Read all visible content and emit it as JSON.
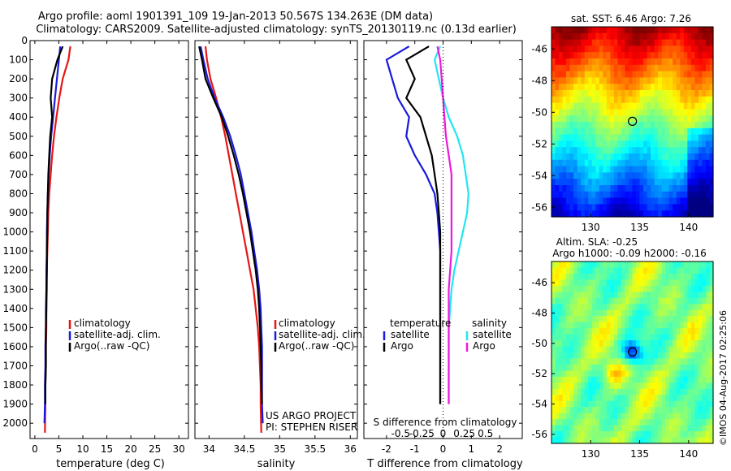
{
  "header": {
    "line1": "Argo profile: aoml 1901391_109 19-Jan-2013 50.567S 134.263E (DM data)",
    "line2": "Climatology: CARS2009. Satellite-adjusted climatology: synTS_20130119.nc (0.13d earlier)"
  },
  "colors": {
    "climatology": "#e81515",
    "satellite": "#1a1adc",
    "argo": "#000000",
    "cyan": "#20e6f0",
    "magenta": "#ee18dd"
  },
  "chart_data": [
    {
      "type": "line",
      "name": "temperature-profile",
      "xlabel": "temperature (deg C)",
      "ylabel": "",
      "xlim": [
        -1,
        32
      ],
      "ylim": [
        2080,
        0
      ],
      "xticks": [
        "0",
        "5",
        "10",
        "15",
        "20",
        "25",
        "30"
      ],
      "yticks": [
        "0",
        "100",
        "200",
        "300",
        "400",
        "500",
        "600",
        "700",
        "800",
        "900",
        "1000",
        "1100",
        "1200",
        "1300",
        "1400",
        "1500",
        "1600",
        "1700",
        "1800",
        "1900",
        "2000"
      ],
      "legend": [
        "climatology",
        "satellite-adj. clim.",
        "Argo(..raw -QC)"
      ],
      "series": [
        {
          "name": "climatology",
          "color_key": "climatology",
          "x": [
            7.4,
            7.0,
            5.8,
            5.1,
            4.5,
            4.0,
            3.6,
            3.3,
            3.0,
            2.8,
            2.7,
            2.6,
            2.5,
            2.5,
            2.4,
            2.4,
            2.3,
            2.3,
            2.2,
            2.2,
            2.1
          ],
          "y": [
            30,
            100,
            200,
            300,
            400,
            500,
            600,
            700,
            800,
            900,
            1000,
            1100,
            1200,
            1300,
            1400,
            1500,
            1600,
            1700,
            1800,
            1900,
            2050
          ]
        },
        {
          "name": "satellite-adj. clim.",
          "color_key": "satellite",
          "x": [
            5.3,
            5.0,
            4.6,
            4.2,
            3.8,
            3.4,
            3.1,
            2.9,
            2.7,
            2.6,
            2.5,
            2.5,
            2.4,
            2.4,
            2.3,
            2.3,
            2.2,
            2.2,
            2.1,
            2.1,
            2.0
          ],
          "y": [
            30,
            100,
            200,
            300,
            400,
            500,
            600,
            700,
            800,
            900,
            1000,
            1100,
            1200,
            1300,
            1400,
            1500,
            1600,
            1700,
            1800,
            1900,
            2000
          ]
        },
        {
          "name": "Argo(..raw -QC)",
          "color_key": "argo",
          "x": [
            5.8,
            4.7,
            3.6,
            3.3,
            3.6,
            3.2,
            3.0,
            2.8,
            2.7,
            2.6,
            2.6,
            2.5,
            2.5,
            2.4,
            2.4,
            2.3,
            2.3,
            2.3,
            2.2,
            2.2
          ],
          "y": [
            30,
            100,
            200,
            300,
            400,
            500,
            600,
            700,
            800,
            900,
            1000,
            1100,
            1200,
            1300,
            1400,
            1500,
            1600,
            1700,
            1800,
            1900
          ]
        }
      ]
    },
    {
      "type": "line",
      "name": "salinity-profile",
      "xlabel": "salinity",
      "xlim": [
        33.8,
        36.1
      ],
      "ylim": [
        2080,
        0
      ],
      "xticks": [
        "34",
        "34.5",
        "35",
        "35.5",
        "36"
      ],
      "legend": [
        "climatology",
        "satellite-adj. clim.",
        "Argo(..raw -QC)"
      ],
      "series": [
        {
          "name": "climatology",
          "color_key": "climatology",
          "x": [
            33.95,
            33.97,
            34.02,
            34.1,
            34.17,
            34.23,
            34.28,
            34.33,
            34.38,
            34.43,
            34.48,
            34.53,
            34.58,
            34.63,
            34.66,
            34.69,
            34.71,
            34.72,
            34.73,
            34.73,
            34.74
          ],
          "y": [
            30,
            100,
            200,
            300,
            400,
            500,
            600,
            700,
            800,
            900,
            1000,
            1100,
            1200,
            1300,
            1400,
            1500,
            1600,
            1700,
            1800,
            1900,
            2050
          ]
        },
        {
          "name": "satellite-adj. clim.",
          "color_key": "satellite",
          "x": [
            33.88,
            33.92,
            33.98,
            34.08,
            34.2,
            34.3,
            34.38,
            34.45,
            34.5,
            34.55,
            34.6,
            34.64,
            34.68,
            34.71,
            34.73,
            34.74,
            34.75,
            34.75,
            34.75,
            34.75,
            34.76
          ],
          "y": [
            30,
            100,
            200,
            300,
            400,
            500,
            600,
            700,
            800,
            900,
            1000,
            1100,
            1200,
            1300,
            1400,
            1500,
            1600,
            1700,
            1800,
            1900,
            2000
          ]
        },
        {
          "name": "Argo(..raw -QC)",
          "color_key": "argo",
          "x": [
            33.86,
            33.9,
            33.95,
            34.06,
            34.18,
            34.27,
            34.35,
            34.42,
            34.48,
            34.53,
            34.58,
            34.62,
            34.66,
            34.69,
            34.71,
            34.72,
            34.73,
            34.74,
            34.74,
            34.75
          ],
          "y": [
            30,
            100,
            200,
            300,
            400,
            500,
            600,
            700,
            800,
            900,
            1000,
            1100,
            1200,
            1300,
            1400,
            1500,
            1600,
            1700,
            1800,
            1900
          ]
        }
      ],
      "annotation_lines": [
        "US ARGO PROJECT",
        "PI: STEPHEN RISER"
      ]
    },
    {
      "type": "line",
      "name": "difference-profile",
      "xlabel": "T difference from climatology",
      "top_axis_label": "S difference from climatology",
      "xlim": [
        -2.8,
        2.8
      ],
      "ylim": [
        2080,
        0
      ],
      "xticks": [
        "-2",
        "-1",
        "0",
        "1",
        "2"
      ],
      "top_xticks": [
        "-0.5",
        "-0.25",
        "0",
        "0.25",
        "0.5"
      ],
      "legend_left_title": "temperature",
      "legend_right_title": "salinity",
      "legend_items": [
        "satellite",
        "Argo",
        "satellite",
        "Argo"
      ],
      "series": [
        {
          "name": "satellite",
          "color_key": "satellite",
          "x": [
            -1.2,
            -2.0,
            -1.8,
            -1.6,
            -1.2,
            -1.3,
            -1.0,
            -0.6,
            -0.3,
            -0.2,
            -0.15,
            -0.1,
            -0.1,
            -0.1,
            -0.1,
            -0.1,
            -0.1,
            -0.1,
            -0.1,
            -0.1
          ],
          "y": [
            30,
            100,
            200,
            300,
            400,
            500,
            600,
            700,
            800,
            900,
            1000,
            1100,
            1200,
            1300,
            1400,
            1500,
            1600,
            1700,
            1800,
            1900
          ]
        },
        {
          "name": "Argo",
          "color_key": "argo",
          "x": [
            -0.5,
            -1.3,
            -1.0,
            -1.3,
            -0.8,
            -0.6,
            -0.4,
            -0.3,
            -0.2,
            -0.15,
            -0.1,
            -0.1,
            -0.1,
            -0.1,
            -0.1,
            -0.1,
            -0.1,
            -0.1,
            -0.1,
            -0.1
          ],
          "y": [
            30,
            100,
            200,
            300,
            400,
            500,
            600,
            700,
            800,
            900,
            1000,
            1100,
            1200,
            1300,
            1400,
            1500,
            1600,
            1700,
            1800,
            1900
          ]
        },
        {
          "name": "satellite",
          "color_key": "cyan",
          "x": [
            -0.1,
            -0.3,
            -0.15,
            0.0,
            0.2,
            0.5,
            0.7,
            0.8,
            0.9,
            0.85,
            0.7,
            0.55,
            0.4,
            0.3,
            0.25,
            0.2,
            0.2,
            0.2,
            0.2,
            0.2
          ],
          "y": [
            30,
            100,
            200,
            300,
            400,
            500,
            600,
            700,
            800,
            900,
            1000,
            1100,
            1200,
            1300,
            1400,
            1500,
            1600,
            1700,
            1800,
            1900
          ]
        },
        {
          "name": "Argo",
          "color_key": "magenta",
          "x": [
            -0.2,
            -0.1,
            -0.05,
            0.0,
            0.05,
            0.1,
            0.2,
            0.3,
            0.3,
            0.3,
            0.3,
            0.3,
            0.25,
            0.2,
            0.2,
            0.2,
            0.2,
            0.2,
            0.2,
            0.2
          ],
          "y": [
            30,
            100,
            200,
            300,
            400,
            500,
            600,
            700,
            800,
            900,
            1000,
            1100,
            1200,
            1300,
            1400,
            1500,
            1600,
            1700,
            1800,
            1900
          ]
        }
      ]
    },
    {
      "type": "heatmap",
      "name": "sst-map",
      "title": "sat. SST: 6.46 Argo: 7.26",
      "xlim": [
        126,
        142.5
      ],
      "ylim": [
        -56.6,
        -44.6
      ],
      "xticks": [
        "130",
        "135",
        "140"
      ],
      "yticks": [
        "-46",
        "-48",
        "-50",
        "-52",
        "-54",
        "-56"
      ],
      "float_position": {
        "lon": 134.263,
        "lat": -50.567
      }
    },
    {
      "type": "heatmap",
      "name": "sla-map",
      "title_lines": [
        "Altim. SLA: -0.25",
        "Argo h1000: -0.09 h2000: -0.16"
      ],
      "xlim": [
        126,
        142.5
      ],
      "ylim": [
        -56.6,
        -44.6
      ],
      "xticks": [
        "130",
        "135",
        "140"
      ],
      "yticks": [
        "-46",
        "-48",
        "-50",
        "-52",
        "-54",
        "-56"
      ],
      "float_position": {
        "lon": 134.263,
        "lat": -50.567
      }
    }
  ],
  "footer": {
    "credit": "©IMOS 04-Aug-2017 02:25:06"
  }
}
